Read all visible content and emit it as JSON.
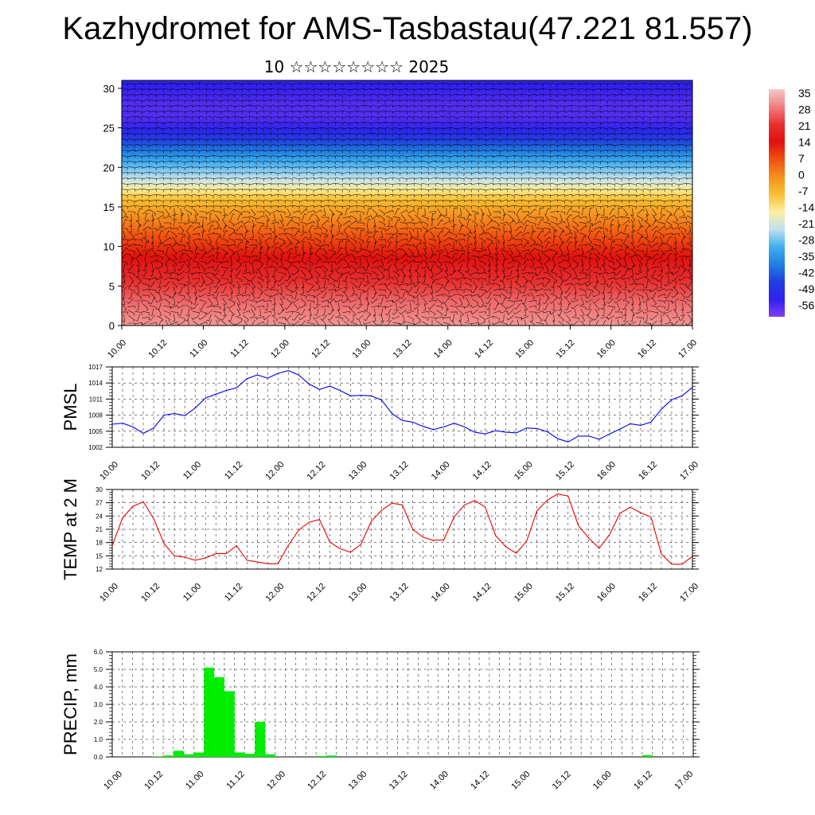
{
  "title": "Kazhydromet for AMS-Tasbastau(47.221 81.557)",
  "subtitle": "10 ☆☆☆☆☆☆☆☆ 2025",
  "chart_data": [
    {
      "type": "heatmap",
      "description_unit": "temperature cross-section with wind barbs",
      "x_ticks": [
        "10.00",
        "10.12",
        "11.00",
        "11.12",
        "12.00",
        "12.12",
        "13.00",
        "13.12",
        "14.00",
        "14.12",
        "15.00",
        "15.12",
        "16.00",
        "16.12",
        "17.00"
      ],
      "y_ticks": [
        0,
        5,
        10,
        15,
        20,
        25,
        30
      ],
      "ylim": [
        0,
        31
      ],
      "colorbar_labels": [
        "35",
        "28",
        "21",
        "14",
        "7",
        "0",
        "-7",
        "-14",
        "-21",
        "-28",
        "-35",
        "-42",
        "-49",
        "-56"
      ],
      "colorbar_colors": [
        "#f4c8c8",
        "#f08080",
        "#e83030",
        "#e01010",
        "#f05010",
        "#f49020",
        "#f8c030",
        "#fcf0a0",
        "#c0e0f0",
        "#40b0f0",
        "#2080e0",
        "#2040e0",
        "#3020f0",
        "#8040f0"
      ],
      "temperature_profile": {
        "heights": [
          0,
          3,
          6,
          9,
          12,
          14.5,
          16,
          18,
          21,
          24,
          26,
          28,
          31
        ],
        "values": [
          30,
          26,
          20,
          13,
          5,
          -2,
          -7,
          -18,
          -30,
          -45,
          -52,
          -52,
          -48
        ]
      }
    },
    {
      "type": "line",
      "ylabel": "PMSL",
      "color": "#0000ee",
      "ylim": [
        1002,
        1017
      ],
      "y_ticks": [
        1002,
        1005,
        1008,
        1011,
        1014,
        1017
      ],
      "x_ticks": [
        "10.00",
        "10.12",
        "11.00",
        "11.12",
        "12.00",
        "12.12",
        "13.00",
        "13.12",
        "14.00",
        "14.12",
        "15.00",
        "15.12",
        "16.00",
        "16.12",
        "17.00"
      ],
      "x_hours": [
        0,
        3,
        6,
        9,
        12,
        15,
        18,
        21,
        24,
        27,
        30,
        33,
        36,
        39,
        42,
        45,
        48,
        51,
        54,
        57,
        60,
        63,
        66,
        69,
        72,
        75,
        78,
        81,
        84,
        87,
        90,
        93,
        96,
        99,
        102,
        105,
        108,
        111,
        114,
        117,
        120,
        123,
        126,
        129,
        132,
        135,
        138,
        141,
        144,
        147,
        150,
        153,
        156,
        159,
        162,
        165,
        168
      ],
      "values": [
        1006.3,
        1006.5,
        1005.8,
        1004.6,
        1005.6,
        1008.0,
        1008.3,
        1007.9,
        1009.3,
        1011.2,
        1011.9,
        1012.6,
        1013.1,
        1014.8,
        1015.5,
        1014.9,
        1015.8,
        1016.3,
        1015.5,
        1013.8,
        1012.8,
        1013.4,
        1012.6,
        1011.6,
        1011.7,
        1011.6,
        1010.8,
        1008.3,
        1007.0,
        1006.7,
        1005.9,
        1005.3,
        1005.8,
        1006.5,
        1005.8,
        1004.8,
        1004.5,
        1005.1,
        1004.8,
        1004.7,
        1005.6,
        1005.5,
        1004.9,
        1003.6,
        1003.0,
        1004.1,
        1004.1,
        1003.5,
        1004.5,
        1005.4,
        1006.4,
        1006.1,
        1006.7,
        1009.1,
        1010.9,
        1011.6,
        1013.2
      ]
    },
    {
      "type": "line",
      "ylabel": "TEMP at 2 M",
      "color": "#ee0000",
      "ylim": [
        12,
        30
      ],
      "y_ticks": [
        12,
        15,
        18,
        21,
        24,
        27,
        30
      ],
      "x_ticks": [
        "10.00",
        "10.12",
        "11.00",
        "11.12",
        "12.00",
        "12.12",
        "13.00",
        "13.12",
        "14.00",
        "14.12",
        "15.00",
        "15.12",
        "16.00",
        "16.12",
        "17.00"
      ],
      "x_hours": [
        0,
        3,
        6,
        9,
        12,
        15,
        18,
        21,
        24,
        27,
        30,
        33,
        36,
        39,
        42,
        45,
        48,
        51,
        54,
        57,
        60,
        63,
        66,
        69,
        72,
        75,
        78,
        81,
        84,
        87,
        90,
        93,
        96,
        99,
        102,
        105,
        108,
        111,
        114,
        117,
        120,
        123,
        126,
        129,
        132,
        135,
        138,
        141,
        144,
        147,
        150,
        153,
        156,
        159,
        162,
        165,
        168
      ],
      "values": [
        17.3,
        23.6,
        26.2,
        27.2,
        23.4,
        17.8,
        15.0,
        14.7,
        14.0,
        14.5,
        15.5,
        15.5,
        17.3,
        14.0,
        13.6,
        13.2,
        13.2,
        17.4,
        20.8,
        22.6,
        23.2,
        18.1,
        16.6,
        15.8,
        17.6,
        22.8,
        25.3,
        26.9,
        26.5,
        21.0,
        19.2,
        18.5,
        18.6,
        23.8,
        26.5,
        27.5,
        26.0,
        19.6,
        17.0,
        15.6,
        18.3,
        25.2,
        27.6,
        29.0,
        28.5,
        21.8,
        19.0,
        16.7,
        19.8,
        24.6,
        26.0,
        24.7,
        23.8,
        15.4,
        13.1,
        13.1,
        14.9
      ]
    },
    {
      "type": "bar",
      "ylabel": "PRECIP, mm",
      "color": "#00ee00",
      "ylim": [
        0,
        6
      ],
      "y_ticks": [
        "0.0",
        "1.0",
        "2.0",
        "3.0",
        "4.0",
        "5.0",
        "6.0"
      ],
      "x_ticks": [
        "10.00",
        "10.12",
        "11.00",
        "11.12",
        "12.00",
        "12.12",
        "13.00",
        "13.12",
        "14.00",
        "14.12",
        "15.00",
        "15.12",
        "16.00",
        "16.12",
        "17.00"
      ],
      "x_hours": [
        0,
        3,
        6,
        9,
        12,
        15,
        18,
        21,
        24,
        27,
        30,
        33,
        36,
        39,
        42,
        45,
        48,
        51,
        54,
        57,
        60,
        63,
        66,
        69,
        72,
        75,
        78,
        81,
        84,
        87,
        90,
        93,
        96,
        99,
        102,
        105,
        108,
        111,
        114,
        117,
        120,
        123,
        126,
        129,
        132,
        135,
        138,
        141,
        144,
        147,
        150,
        153,
        156,
        159,
        162,
        165,
        168
      ],
      "values": [
        0,
        0,
        0,
        0,
        0.03,
        0.08,
        0.35,
        0.15,
        0.25,
        5.1,
        4.55,
        3.75,
        0.25,
        0.18,
        2.0,
        0.15,
        0,
        0,
        0,
        0,
        0.05,
        0.08,
        0,
        0,
        0,
        0,
        0,
        0,
        0,
        0,
        0,
        0,
        0,
        0,
        0,
        0,
        0,
        0,
        0,
        0,
        0,
        0,
        0,
        0,
        0,
        0,
        0,
        0,
        0,
        0,
        0,
        0,
        0.1,
        0,
        0,
        0,
        0
      ]
    }
  ]
}
